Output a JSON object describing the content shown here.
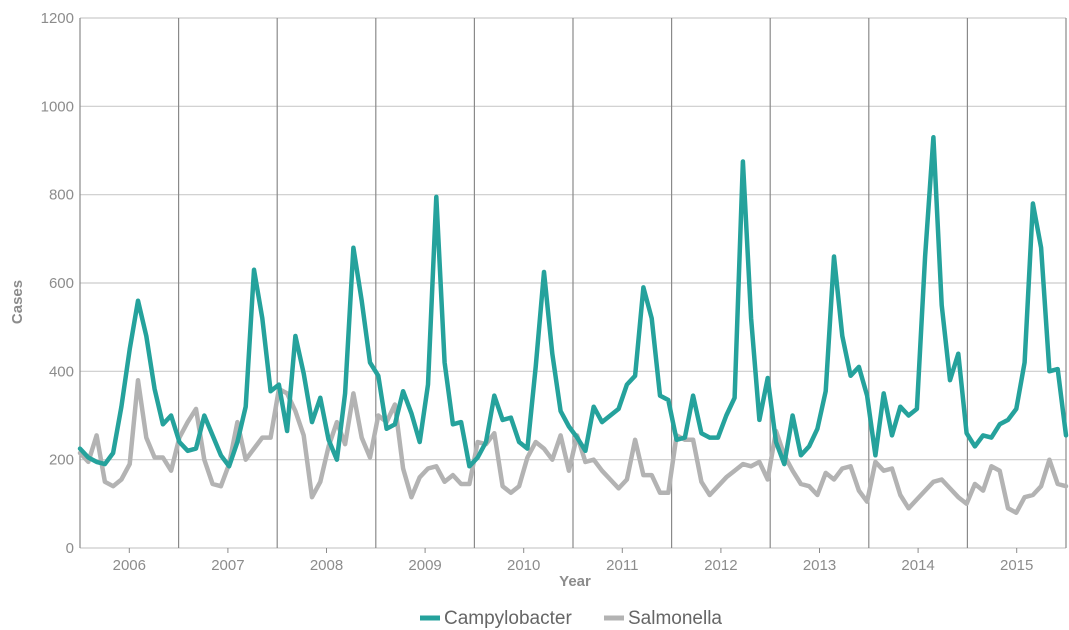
{
  "chart_data": {
    "type": "line",
    "xlabel": "Year",
    "ylabel": "Cases",
    "ylim": [
      0,
      1200
    ],
    "y_ticks": [
      0,
      200,
      400,
      600,
      800,
      1000,
      1200
    ],
    "years": [
      "2006",
      "2007",
      "2008",
      "2009",
      "2010",
      "2011",
      "2012",
      "2013",
      "2014",
      "2015"
    ],
    "grid": true,
    "legend_position": "bottom",
    "x_note": "monthly values, January 2006 to December 2015",
    "series": [
      {
        "name": "Campylobacter",
        "color": "#25a29c",
        "values": [
          225,
          205,
          195,
          190,
          215,
          320,
          450,
          560,
          480,
          360,
          280,
          300,
          240,
          220,
          225,
          300,
          255,
          210,
          185,
          240,
          320,
          630,
          520,
          355,
          370,
          265,
          480,
          395,
          285,
          340,
          245,
          200,
          350,
          680,
          560,
          420,
          390,
          270,
          280,
          355,
          305,
          240,
          370,
          795,
          420,
          280,
          285,
          185,
          205,
          240,
          345,
          290,
          295,
          240,
          225,
          410,
          625,
          440,
          310,
          275,
          250,
          220,
          320,
          285,
          300,
          315,
          370,
          390,
          590,
          520,
          345,
          335,
          245,
          250,
          345,
          260,
          250,
          250,
          300,
          340,
          875,
          520,
          290,
          385,
          240,
          190,
          300,
          210,
          230,
          270,
          355,
          660,
          480,
          390,
          410,
          345,
          210,
          350,
          255,
          320,
          300,
          315,
          660,
          930,
          550,
          380,
          440,
          260,
          230,
          255,
          250,
          280,
          290,
          315,
          420,
          780,
          680,
          400,
          405,
          255
        ]
      },
      {
        "name": "Salmonella",
        "color": "#b3b3b3",
        "values": [
          215,
          195,
          255,
          150,
          140,
          155,
          190,
          380,
          250,
          205,
          205,
          175,
          250,
          285,
          315,
          200,
          145,
          140,
          190,
          285,
          200,
          225,
          250,
          250,
          360,
          350,
          310,
          255,
          115,
          150,
          230,
          285,
          235,
          350,
          250,
          205,
          300,
          285,
          325,
          180,
          115,
          160,
          180,
          185,
          150,
          165,
          145,
          145,
          240,
          235,
          260,
          140,
          125,
          140,
          205,
          240,
          225,
          200,
          255,
          175,
          255,
          195,
          200,
          175,
          155,
          135,
          155,
          245,
          165,
          165,
          125,
          125,
          255,
          245,
          245,
          150,
          120,
          140,
          160,
          175,
          190,
          185,
          195,
          155,
          265,
          210,
          175,
          145,
          140,
          120,
          170,
          155,
          180,
          185,
          130,
          105,
          195,
          175,
          180,
          120,
          90,
          110,
          130,
          150,
          155,
          135,
          115,
          100,
          145,
          130,
          185,
          175,
          90,
          80,
          115,
          120,
          140,
          200,
          145,
          140
        ]
      }
    ]
  }
}
